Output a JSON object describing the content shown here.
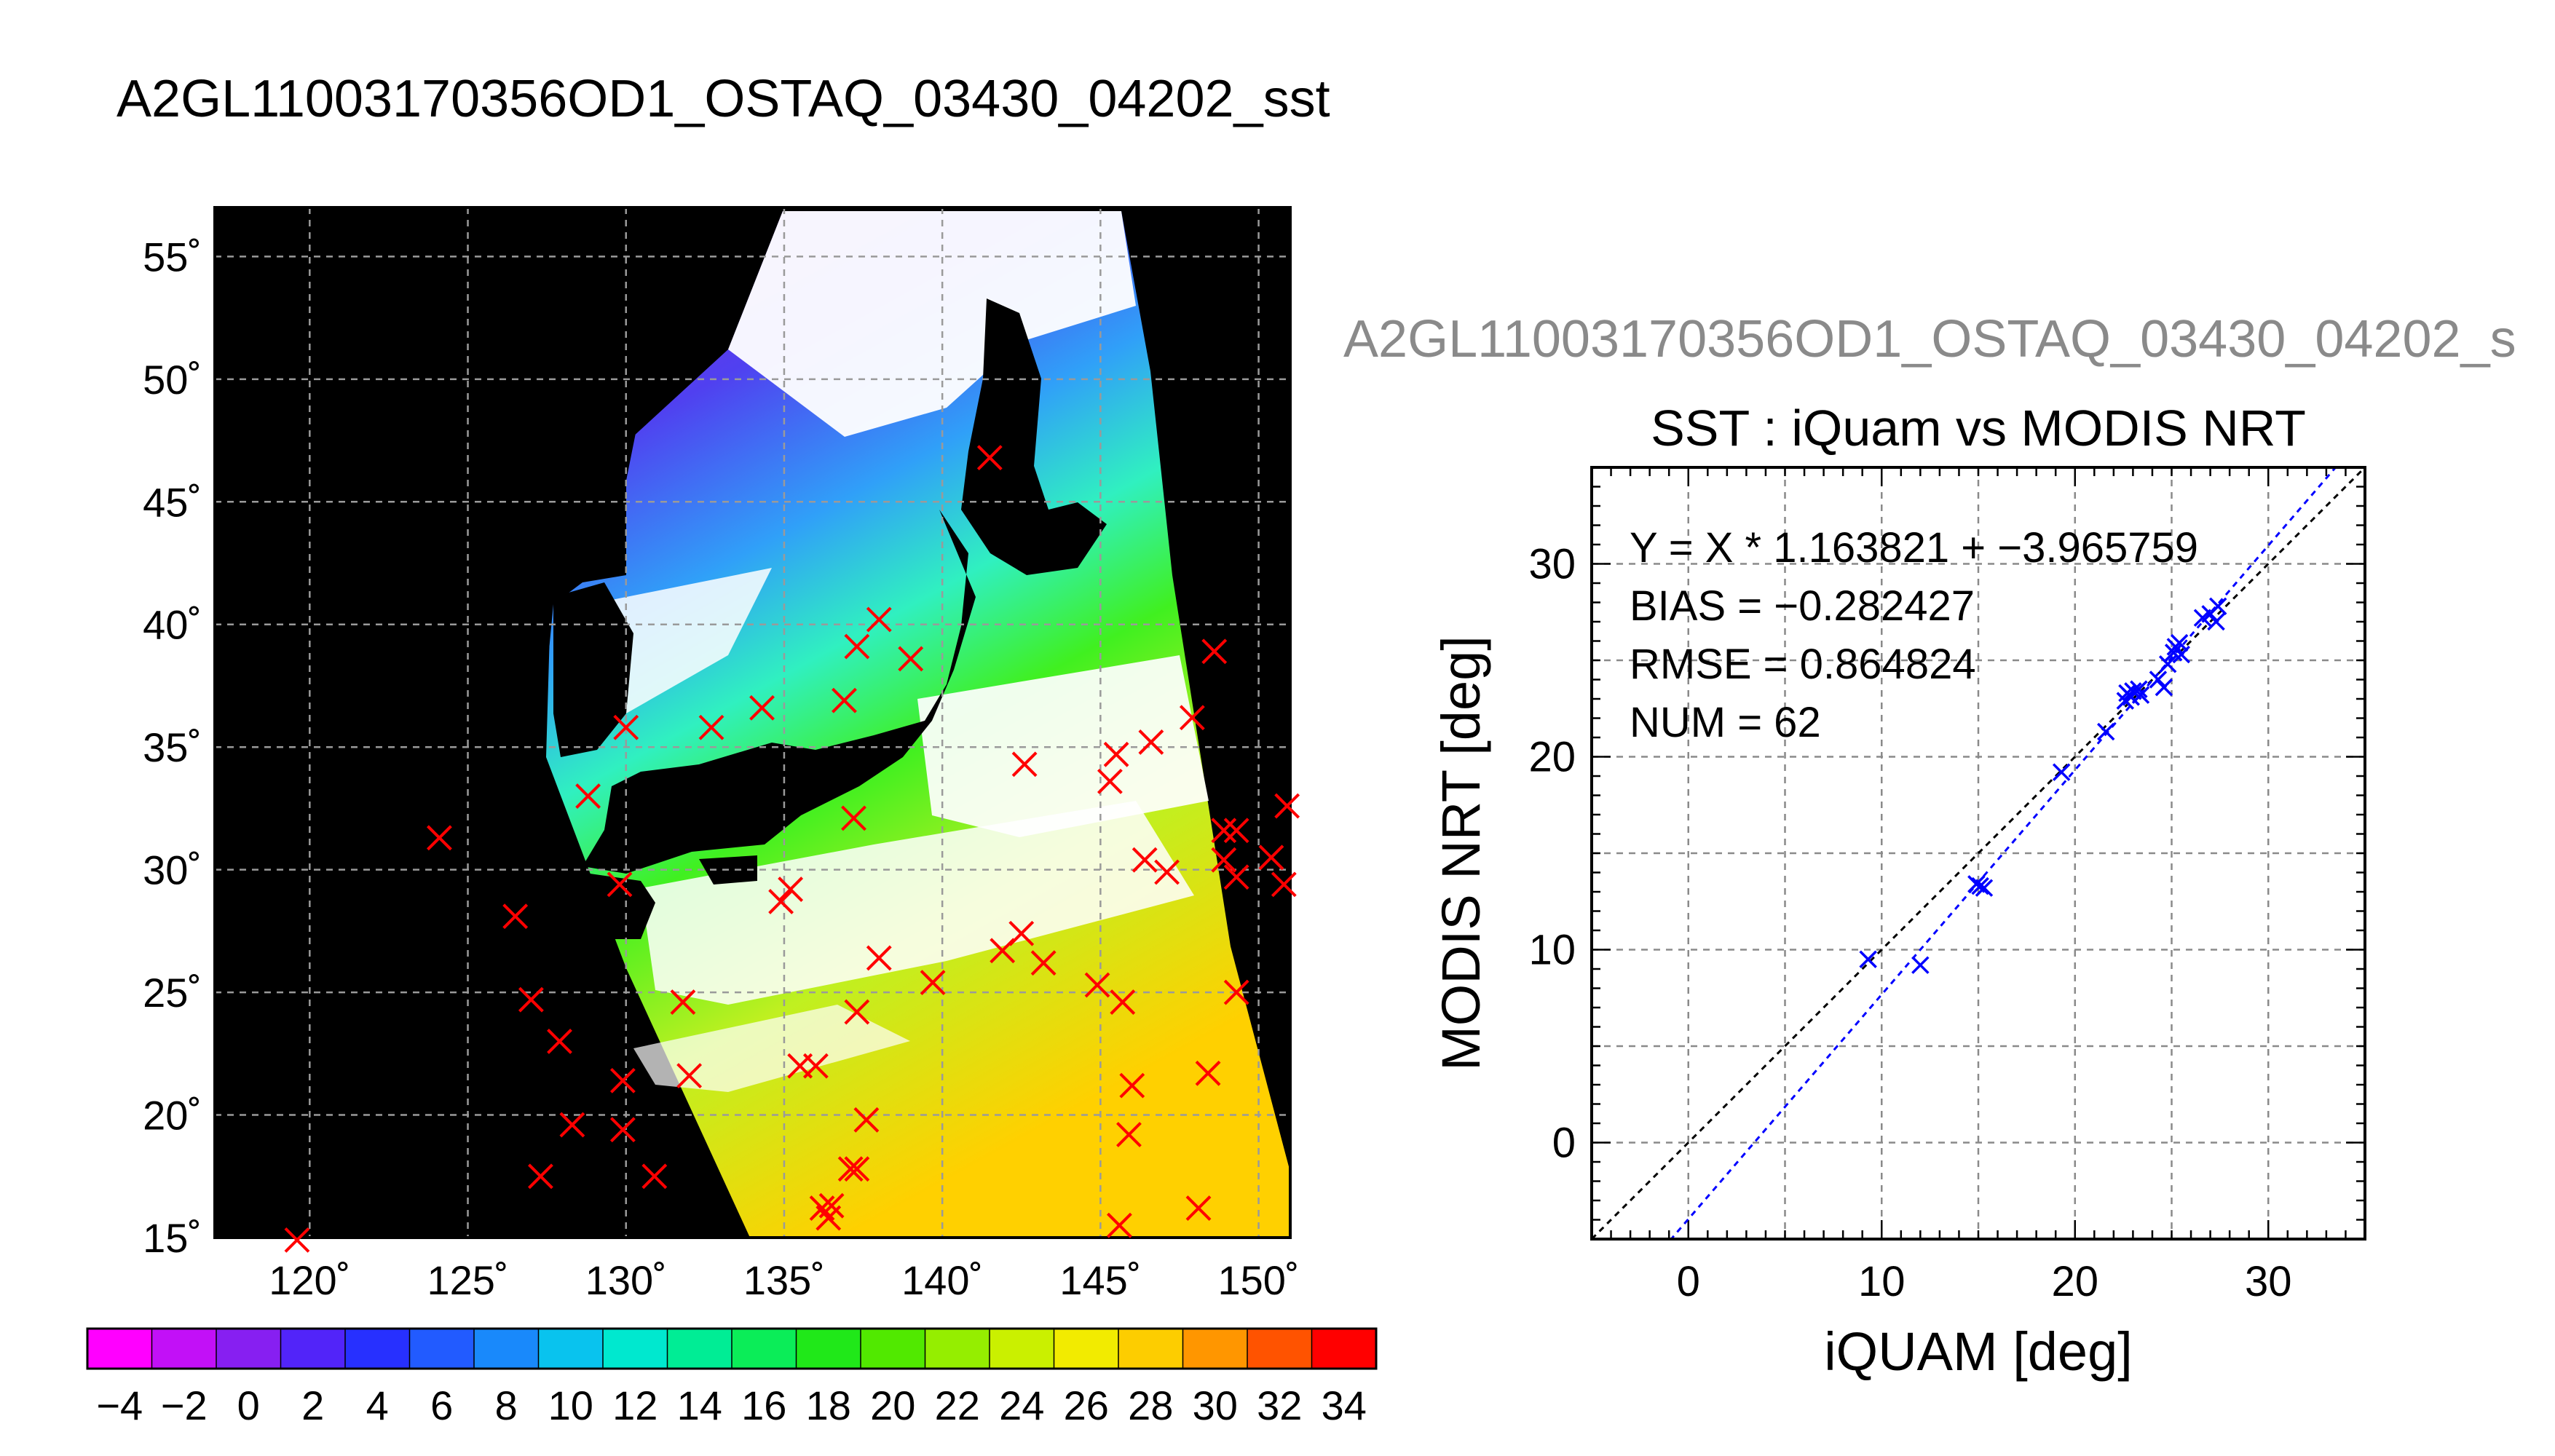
{
  "main_title": "A2GL11003170356OD1_OSTAQ_03430_04202_sst",
  "plot_supertitle": "A2GL11003170356OD1_OSTAQ_03430_04202_s",
  "colors": {
    "match_marker": "#ff0000",
    "plot_marker": "#0000ff",
    "land": "#000000",
    "cloud": "#ffffff"
  },
  "chart_data": [
    {
      "type": "map",
      "lon_range": [
        117,
        151
      ],
      "lat_range": [
        15,
        57
      ],
      "lon_ticks": [
        "120˚",
        "125˚",
        "130˚",
        "135˚",
        "140˚",
        "145˚",
        "150˚"
      ],
      "lat_ticks": [
        "15˚",
        "20˚",
        "25˚",
        "30˚",
        "35˚",
        "40˚",
        "45˚",
        "50˚",
        "55˚"
      ],
      "grid": true,
      "colorbar": {
        "range": [
          -5,
          35
        ],
        "labels": [
          "−4",
          "−2",
          "0",
          "2",
          "4",
          "6",
          "8",
          "10",
          "12",
          "14",
          "16",
          "18",
          "20",
          "22",
          "24",
          "26",
          "28",
          "30",
          "32",
          "34"
        ]
      },
      "markers": [
        {
          "lon": 119.6,
          "lat": 14.9
        },
        {
          "lon": 124.1,
          "lat": 31.3
        },
        {
          "lon": 126.5,
          "lat": 28.1
        },
        {
          "lon": 127.0,
          "lat": 24.7
        },
        {
          "lon": 127.9,
          "lat": 23.0
        },
        {
          "lon": 128.3,
          "lat": 19.6
        },
        {
          "lon": 127.3,
          "lat": 17.5
        },
        {
          "lon": 129.9,
          "lat": 21.4
        },
        {
          "lon": 129.9,
          "lat": 19.4
        },
        {
          "lon": 130.9,
          "lat": 17.5
        },
        {
          "lon": 132.0,
          "lat": 21.6
        },
        {
          "lon": 131.8,
          "lat": 24.6
        },
        {
          "lon": 128.8,
          "lat": 33.0
        },
        {
          "lon": 129.8,
          "lat": 29.4
        },
        {
          "lon": 130.0,
          "lat": 35.8
        },
        {
          "lon": 132.7,
          "lat": 35.8
        },
        {
          "lon": 134.3,
          "lat": 36.6
        },
        {
          "lon": 134.9,
          "lat": 28.7
        },
        {
          "lon": 135.2,
          "lat": 29.2
        },
        {
          "lon": 135.5,
          "lat": 22.0
        },
        {
          "lon": 136.0,
          "lat": 22.0
        },
        {
          "lon": 136.2,
          "lat": 16.2
        },
        {
          "lon": 136.4,
          "lat": 15.8
        },
        {
          "lon": 136.5,
          "lat": 16.3
        },
        {
          "lon": 137.1,
          "lat": 17.8
        },
        {
          "lon": 137.3,
          "lat": 17.8
        },
        {
          "lon": 137.6,
          "lat": 19.8
        },
        {
          "lon": 137.3,
          "lat": 24.2
        },
        {
          "lon": 138.0,
          "lat": 26.4
        },
        {
          "lon": 137.2,
          "lat": 32.1
        },
        {
          "lon": 137.3,
          "lat": 39.1
        },
        {
          "lon": 138.0,
          "lat": 40.2
        },
        {
          "lon": 139.0,
          "lat": 38.6
        },
        {
          "lon": 139.7,
          "lat": 25.4
        },
        {
          "lon": 136.9,
          "lat": 36.9
        },
        {
          "lon": 141.5,
          "lat": 46.8
        },
        {
          "lon": 141.9,
          "lat": 26.7
        },
        {
          "lon": 142.5,
          "lat": 27.4
        },
        {
          "lon": 142.6,
          "lat": 34.3
        },
        {
          "lon": 143.2,
          "lat": 26.2
        },
        {
          "lon": 144.9,
          "lat": 25.3
        },
        {
          "lon": 145.3,
          "lat": 33.6
        },
        {
          "lon": 145.5,
          "lat": 34.7
        },
        {
          "lon": 146.6,
          "lat": 35.2
        },
        {
          "lon": 145.7,
          "lat": 24.6
        },
        {
          "lon": 146.4,
          "lat": 30.4
        },
        {
          "lon": 147.1,
          "lat": 29.9
        },
        {
          "lon": 146.0,
          "lat": 21.2
        },
        {
          "lon": 145.9,
          "lat": 19.2
        },
        {
          "lon": 145.6,
          "lat": 15.5
        },
        {
          "lon": 148.1,
          "lat": 16.2
        },
        {
          "lon": 148.4,
          "lat": 21.7
        },
        {
          "lon": 147.9,
          "lat": 36.2
        },
        {
          "lon": 148.6,
          "lat": 38.9
        },
        {
          "lon": 148.9,
          "lat": 31.6
        },
        {
          "lon": 149.3,
          "lat": 31.6
        },
        {
          "lon": 148.9,
          "lat": 30.4
        },
        {
          "lon": 149.3,
          "lat": 29.7
        },
        {
          "lon": 149.3,
          "lat": 25.0
        },
        {
          "lon": 150.8,
          "lat": 29.4
        },
        {
          "lon": 150.9,
          "lat": 32.6
        },
        {
          "lon": 150.4,
          "lat": 30.5
        }
      ]
    },
    {
      "type": "scatter",
      "title": "SST : iQuam vs MODIS NRT",
      "xlabel": "iQUAM [deg]",
      "ylabel": "MODIS NRT [deg]",
      "xlim": [
        -5,
        35
      ],
      "ylim": [
        -5,
        35
      ],
      "xticks": [
        "0",
        "10",
        "20",
        "30"
      ],
      "yticks": [
        "0",
        "10",
        "20",
        "30"
      ],
      "grid": true,
      "stats": [
        "Y = X * 1.163821 + −3.965759",
        "BIAS = −0.282427",
        "RMSE = 0.864824",
        "NUM = 62"
      ],
      "fit": {
        "slope": 1.163821,
        "intercept": -3.965759
      },
      "points": [
        [
          9.3,
          9.5
        ],
        [
          12.0,
          9.2
        ],
        [
          14.9,
          13.4
        ],
        [
          15.1,
          13.3
        ],
        [
          15.3,
          13.2
        ],
        [
          19.3,
          19.2
        ],
        [
          21.6,
          21.3
        ],
        [
          22.6,
          22.9
        ],
        [
          22.7,
          23.3
        ],
        [
          22.9,
          23.1
        ],
        [
          23.0,
          23.4
        ],
        [
          23.3,
          23.5
        ],
        [
          23.4,
          23.2
        ],
        [
          24.3,
          24.0
        ],
        [
          24.6,
          23.6
        ],
        [
          24.8,
          24.8
        ],
        [
          25.1,
          25.4
        ],
        [
          25.2,
          25.7
        ],
        [
          25.4,
          25.9
        ],
        [
          25.5,
          25.3
        ],
        [
          26.6,
          27.2
        ],
        [
          27.0,
          27.4
        ],
        [
          27.3,
          27.0
        ],
        [
          27.4,
          27.8
        ]
      ]
    }
  ]
}
